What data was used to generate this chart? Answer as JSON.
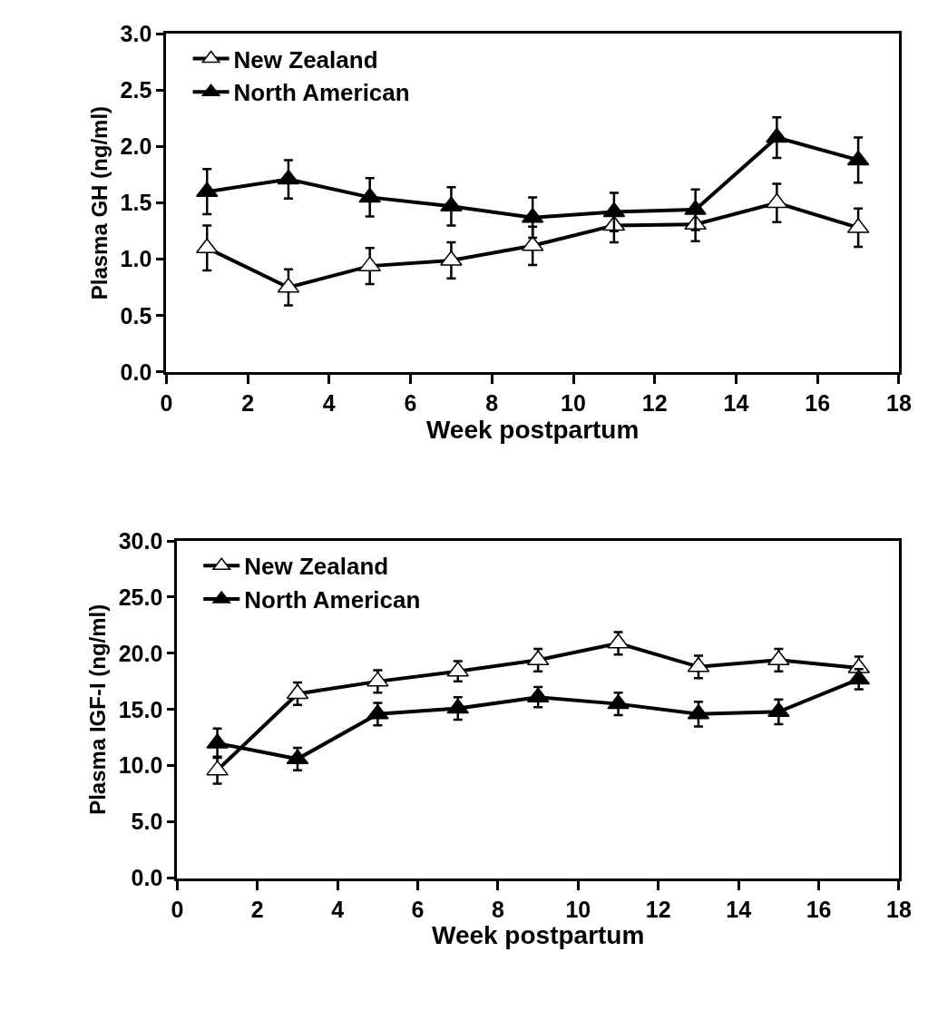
{
  "chart_data": [
    {
      "type": "line",
      "xlabel": "Week postpartum",
      "ylabel": "Plasma GH (ng/ml)",
      "x": [
        1,
        3,
        5,
        7,
        9,
        11,
        13,
        15,
        17
      ],
      "series": [
        {
          "name": "New Zealand",
          "color": "#000000",
          "colors": [
            "#ffffff",
            "#ffffff",
            "#ffffff",
            "#ffffff",
            "#ffffff",
            "#ffffff",
            "#ffffff",
            "#ffffff",
            "#ffffff"
          ],
          "values": [
            1.1,
            0.75,
            0.94,
            0.99,
            1.12,
            1.3,
            1.31,
            1.5,
            1.28
          ],
          "errors": [
            0.2,
            0.16,
            0.16,
            0.16,
            0.17,
            0.15,
            0.15,
            0.17,
            0.17
          ]
        },
        {
          "name": "North American",
          "color": "#000000",
          "values": [
            1.6,
            1.71,
            1.55,
            1.47,
            1.37,
            1.42,
            1.44,
            2.08,
            1.88
          ],
          "errors": [
            0.2,
            0.17,
            0.17,
            0.17,
            0.18,
            0.17,
            0.18,
            0.18,
            0.2
          ]
        }
      ],
      "xlim": [
        0,
        18
      ],
      "xticks": [
        0,
        2,
        4,
        6,
        8,
        10,
        12,
        14,
        16,
        18
      ],
      "ylim": [
        0,
        3
      ],
      "yticks": [
        {
          "value": 0,
          "label": "0.0"
        },
        {
          "value": 0.5,
          "label": "0.5"
        },
        {
          "value": 1,
          "label": "1.0"
        },
        {
          "value": 1.5,
          "label": "1.5"
        },
        {
          "value": 2,
          "label": "2.0"
        },
        {
          "value": 2.5,
          "label": "2.5"
        },
        {
          "value": 3,
          "label": "3.0"
        }
      ],
      "legend": "top left",
      "marker": "triangle",
      "line_style": "solid"
    },
    {
      "type": "line",
      "xlabel": "Week postpartum",
      "ylabel": "Plasma IGF-I (ng/ml)",
      "x": [
        1,
        3,
        5,
        7,
        9,
        11,
        13,
        15,
        17
      ],
      "series": [
        {
          "name": "New Zealand",
          "color": "#000000",
          "colors": [
            "#ffffff",
            "#ffffff",
            "#ffffff",
            "#ffffff",
            "#ffffff",
            "#ffffff",
            "#ffffff",
            "#ffffff",
            "#ffffff"
          ],
          "values": [
            9.6,
            16.4,
            17.5,
            18.4,
            19.4,
            20.9,
            18.8,
            19.4,
            18.7
          ],
          "errors": [
            1.2,
            1.0,
            1.0,
            0.9,
            1.0,
            1.0,
            1.0,
            1.0,
            1.0
          ]
        },
        {
          "name": "North American",
          "color": "#000000",
          "values": [
            12.0,
            10.6,
            14.6,
            15.1,
            16.1,
            15.5,
            14.6,
            14.8,
            17.7
          ],
          "errors": [
            1.3,
            1.0,
            1.0,
            1.0,
            0.9,
            1.0,
            1.1,
            1.1,
            0.9
          ]
        }
      ],
      "xlim": [
        0,
        18
      ],
      "xticks": [
        0,
        2,
        4,
        6,
        8,
        10,
        12,
        14,
        16,
        18
      ],
      "ylim": [
        0,
        30
      ],
      "yticks": [
        {
          "value": 0,
          "label": "0.0"
        },
        {
          "value": 5,
          "label": "5.0"
        },
        {
          "value": 10,
          "label": "10.0"
        },
        {
          "value": 15,
          "label": "15.0"
        },
        {
          "value": 20,
          "label": "20.0"
        },
        {
          "value": 25,
          "label": "25.0"
        },
        {
          "value": 30,
          "label": "30.0"
        }
      ],
      "legend": "top left",
      "marker": "triangle",
      "line_style": "solid"
    }
  ]
}
